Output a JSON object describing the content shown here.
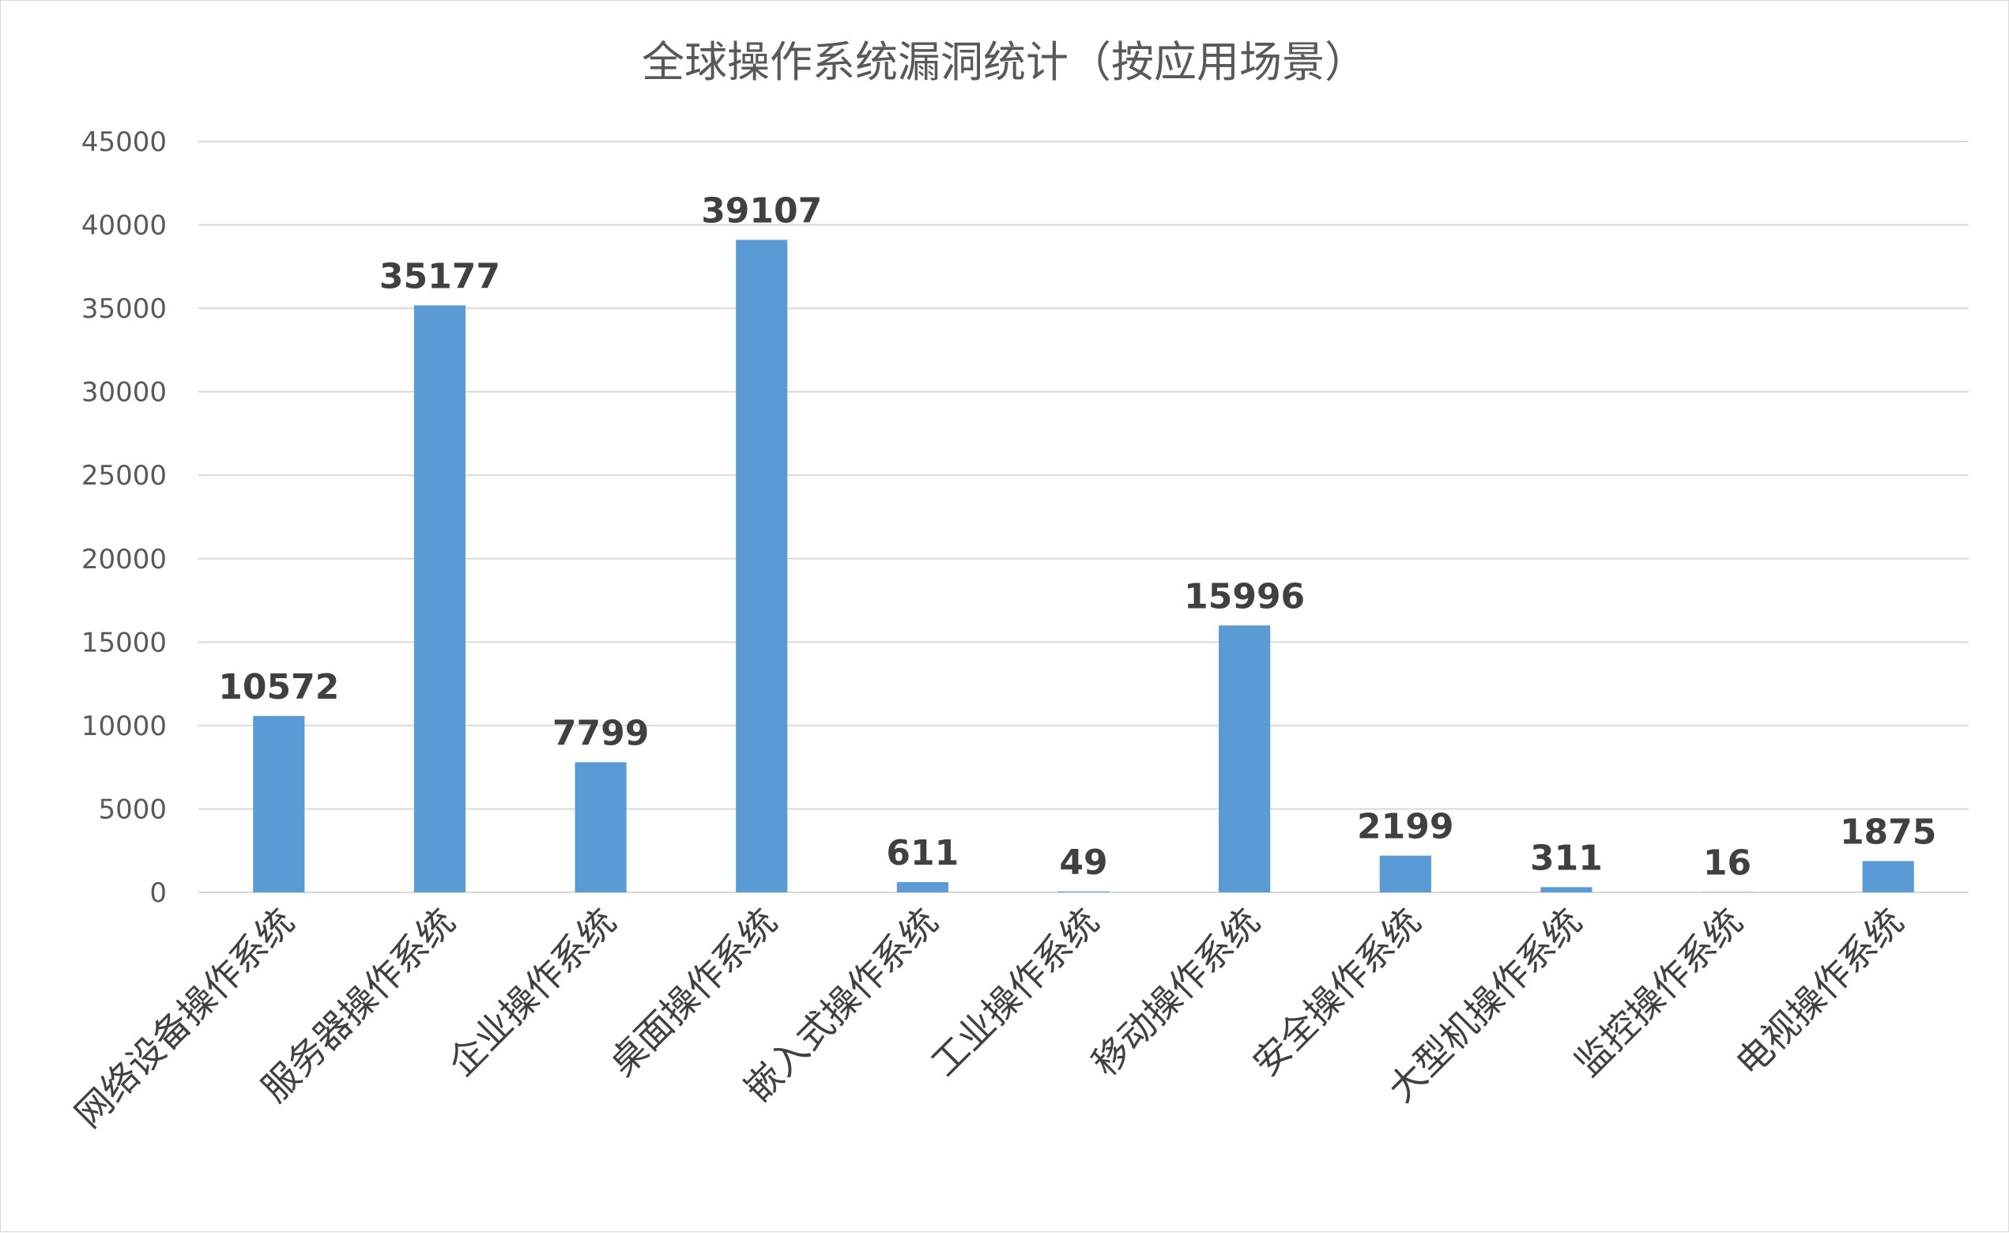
{
  "chart_data": {
    "type": "bar",
    "title": "全球操作系统漏洞统计（按应用场景）",
    "xlabel": "",
    "ylabel": "",
    "categories": [
      "网络设备操作系统",
      "服务器操作系统",
      "企业操作系统",
      "桌面操作系统",
      "嵌入式操作系统",
      "工业操作系统",
      "移动操作系统",
      "安全操作系统",
      "大型机操作系统",
      "监控操作系统",
      "电视操作系统"
    ],
    "values": [
      10572,
      35177,
      7799,
      39107,
      611,
      49,
      15996,
      2199,
      311,
      16,
      1875
    ],
    "ylim": [
      0,
      45000
    ],
    "yticks": [
      0,
      5000,
      10000,
      15000,
      20000,
      25000,
      30000,
      35000,
      40000,
      45000
    ],
    "grid": true,
    "legend": "none",
    "data_labels": true,
    "bar_color": "#5b9bd5"
  }
}
